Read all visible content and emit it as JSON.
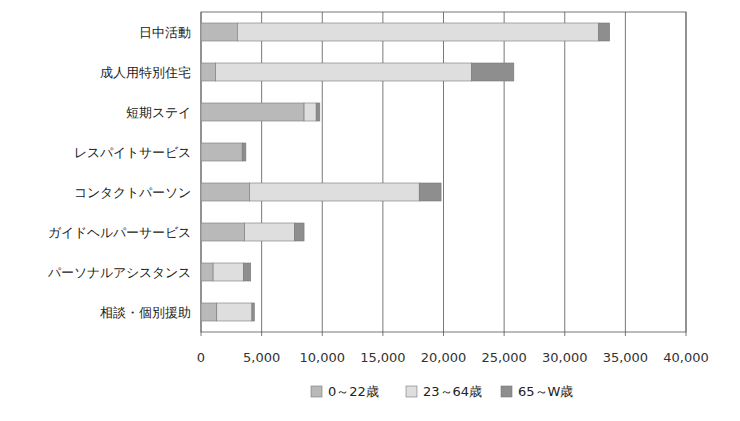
{
  "chart_data": {
    "type": "bar",
    "orientation": "horizontal",
    "stacked": true,
    "grid": true,
    "legend": "bottom",
    "categories": [
      "日中活動",
      "成人用特別住宅",
      "短期ステイ",
      "レスパイトサービス",
      "コンタクトパーソン",
      "ガイドヘルパーサービス",
      "パーソナルアシスタンス",
      "相談・個別援助"
    ],
    "series": [
      {
        "name": "0～22歳",
        "color": "#b9b9b9",
        "values": [
          3000,
          1200,
          8500,
          3400,
          4000,
          3600,
          1000,
          1300
        ]
      },
      {
        "name": "23～64歳",
        "color": "#dedede",
        "values": [
          29800,
          21100,
          1000,
          0,
          14000,
          4100,
          2500,
          2900
        ]
      },
      {
        "name": "65～W歳",
        "color": "#8e8e8e",
        "values": [
          900,
          3500,
          300,
          300,
          1800,
          800,
          600,
          200
        ]
      }
    ],
    "xlim": [
      0,
      40000
    ],
    "xticks": [
      0,
      {
        "value": 5000,
        "label": "5,000"
      },
      {
        "value": 10000,
        "label": "10,000"
      },
      {
        "value": 15000,
        "label": "15,000"
      },
      {
        "value": 20000,
        "label": "20,000"
      },
      {
        "value": 25000,
        "label": "25,000"
      },
      {
        "value": 30000,
        "label": "30,000"
      },
      {
        "value": 35000,
        "label": "35,000"
      },
      {
        "value": 40000,
        "label": "40,000"
      }
    ]
  }
}
